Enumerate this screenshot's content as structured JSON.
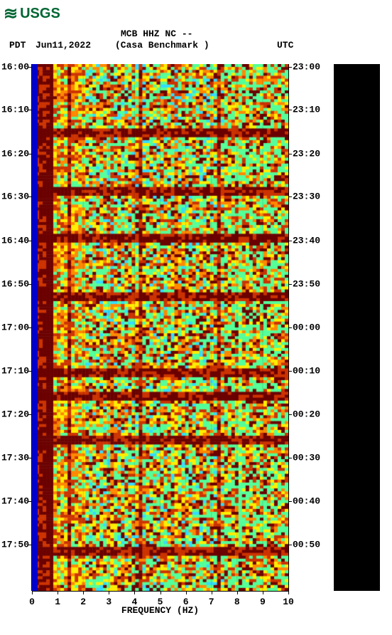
{
  "logo": {
    "text": "USGS"
  },
  "header": {
    "line1": "MCB HHZ NC --",
    "line2": "(Casa Benchmark )",
    "tz_left": "PDT",
    "date": "Jun11,2022",
    "tz_right": "UTC"
  },
  "spectrogram": {
    "type": "spectrogram",
    "xlabel": "FREQUENCY (HZ)",
    "xlim": [
      0,
      10
    ],
    "xticks": [
      0,
      1,
      2,
      3,
      4,
      5,
      6,
      7,
      8,
      9,
      10
    ],
    "y_left_ticks": [
      "16:00",
      "16:10",
      "16:20",
      "16:30",
      "16:40",
      "16:50",
      "17:00",
      "17:10",
      "17:20",
      "17:30",
      "17:40",
      "17:50"
    ],
    "y_right_ticks": [
      "23:00",
      "23:10",
      "23:20",
      "23:30",
      "23:40",
      "23:50",
      "00:00",
      "00:10",
      "00:20",
      "00:30",
      "00:40",
      "00:50"
    ],
    "y_tick_positions_pct": [
      0.5,
      8.7,
      17.0,
      25.2,
      33.5,
      41.7,
      50.0,
      58.2,
      66.5,
      74.7,
      83.0,
      91.2
    ],
    "background_color": "#ffffff",
    "colors": {
      "low": "#6b0000",
      "midlow": "#cc3300",
      "mid": "#ff8800",
      "midhigh": "#ffee00",
      "high": "#55ff99",
      "veryhigh": "#33ddff",
      "blue_bar": "#0000cc"
    },
    "dark_band_rows_pct": [
      12.5,
      24.0,
      33.0,
      43.8,
      58.5,
      62.5,
      71.0,
      92.0
    ],
    "dark_band_height_pct": 1.2,
    "vertical_dark_cols_pct": [
      6.5,
      14.0,
      41.0,
      72.0
    ],
    "cell_grid": {
      "cols": 72,
      "rows": 180
    }
  },
  "colorbar": {
    "background": "#000000"
  }
}
